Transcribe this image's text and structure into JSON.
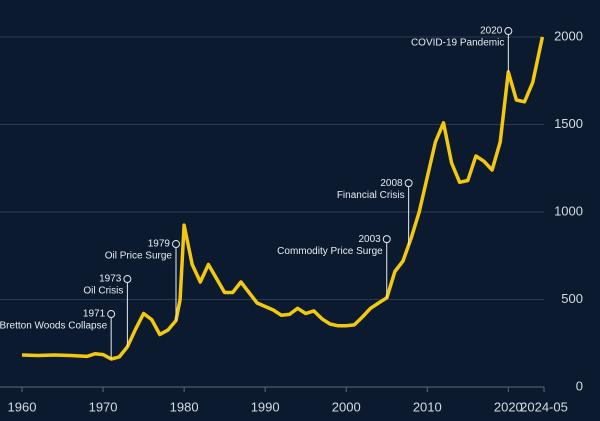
{
  "chart_data": {
    "type": "line",
    "x": [
      1960,
      1962,
      1964,
      1966,
      1968,
      1969,
      1970,
      1971,
      1972,
      1973,
      1974,
      1975,
      1976,
      1977,
      1978,
      1979,
      1979.5,
      1980,
      1981,
      1982,
      1983,
      1984,
      1985,
      1986,
      1987,
      1988,
      1989,
      1990,
      1991,
      1992,
      1993,
      1994,
      1995,
      1996,
      1997,
      1998,
      1999,
      2000,
      2001,
      2002,
      2003,
      2004,
      2005,
      2006,
      2007,
      2008,
      2009,
      2010,
      2011,
      2012,
      2013,
      2014,
      2015,
      2016,
      2017,
      2018,
      2019,
      2020,
      2021,
      2022,
      2023,
      2024.2
    ],
    "series": [
      {
        "color": "#f2c811",
        "values": [
          183,
          180,
          183,
          180,
          175,
          190,
          185,
          160,
          172,
          230,
          330,
          420,
          385,
          300,
          325,
          380,
          500,
          925,
          700,
          600,
          700,
          620,
          540,
          540,
          600,
          540,
          480,
          460,
          440,
          410,
          415,
          450,
          420,
          435,
          390,
          360,
          350,
          350,
          355,
          400,
          450,
          480,
          510,
          660,
          720,
          850,
          1000,
          1200,
          1400,
          1510,
          1280,
          1170,
          1180,
          1320,
          1290,
          1240,
          1400,
          1800,
          1640,
          1630,
          1740,
          2000
        ]
      }
    ],
    "xlim": [
      1960,
      2024.4
    ],
    "xticks": [
      1960,
      1970,
      1980,
      1990,
      2000,
      2010,
      2020,
      {
        "value": 2024.4,
        "label": "2024-05"
      }
    ],
    "ylim": [
      0,
      2000
    ],
    "yticks": [
      0,
      500,
      1000,
      1500,
      2000
    ],
    "grid": true,
    "annotations": [
      {
        "year": "1971",
        "label": "Bretton Woods Collapse",
        "x": 1971,
        "y": 417
      },
      {
        "year": "1973",
        "label": "Oil Crisis",
        "x": 1973,
        "y": 617
      },
      {
        "year": "1979",
        "label": "Oil Price Surge",
        "x": 1979,
        "y": 817
      },
      {
        "year": "2003",
        "label": "Commodity Price Surge",
        "x": 2005,
        "y": 845
      },
      {
        "year": "2008",
        "label": "Financial Crisis",
        "x": 2007.7,
        "y": 1165
      },
      {
        "year": "2020",
        "label": "COVID-19 Pandemic",
        "x": 2020,
        "y": 2034
      }
    ]
  }
}
